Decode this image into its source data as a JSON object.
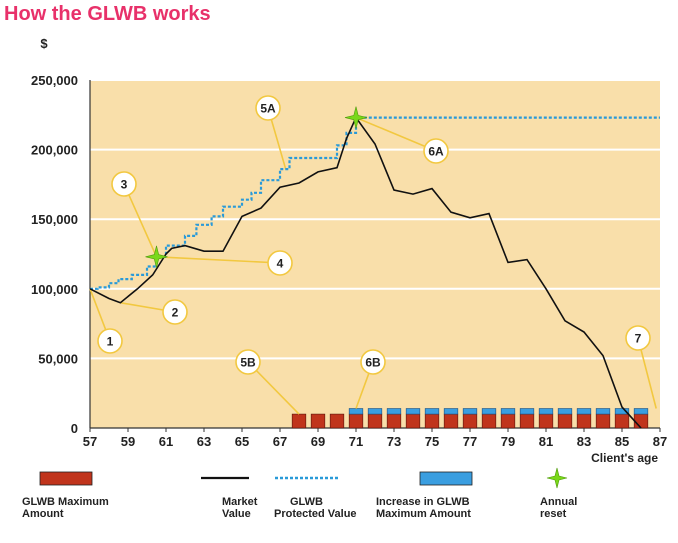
{
  "title": "How the GLWB works",
  "colors": {
    "background": "#f9dfaa",
    "gridline": "#ffffff",
    "title": "#e8316a",
    "max_amount": "#c0341c",
    "increase": "#3a9ee0",
    "market": "#111111",
    "protected": "#2a9ad8",
    "reset": "#7ad81a",
    "callout_line": "#f2c840"
  },
  "chart_data": {
    "type": "line",
    "title": "How the GLWB works",
    "ylabel": "$",
    "xlabel": "Client's age",
    "xlim": [
      57,
      87
    ],
    "ylim": [
      0,
      250000
    ],
    "x_ticks": [
      "57",
      "59",
      "61",
      "63",
      "65",
      "67",
      "69",
      "71",
      "73",
      "75",
      "77",
      "79",
      "81",
      "83",
      "85",
      "87"
    ],
    "y_ticks": [
      "0",
      "50,000",
      "100,000",
      "150,000",
      "200,000",
      "250,000"
    ],
    "grid": true,
    "series": [
      {
        "name": "Market Value",
        "points": [
          [
            57,
            100000
          ],
          [
            58,
            93000
          ],
          [
            58.6,
            90000
          ],
          [
            59.5,
            100000
          ],
          [
            60.3,
            110000
          ],
          [
            61,
            125000
          ],
          [
            61.3,
            129000
          ],
          [
            62,
            131000
          ],
          [
            63,
            127000
          ],
          [
            64,
            127000
          ],
          [
            65,
            152000
          ],
          [
            66,
            158000
          ],
          [
            67,
            173000
          ],
          [
            68,
            176000
          ],
          [
            69,
            184000
          ],
          [
            70,
            187000
          ],
          [
            70.5,
            208000
          ],
          [
            71,
            223000
          ],
          [
            72,
            204000
          ],
          [
            73,
            171000
          ],
          [
            74,
            168000
          ],
          [
            75,
            172000
          ],
          [
            76,
            155000
          ],
          [
            77,
            151000
          ],
          [
            78,
            154000
          ],
          [
            79,
            119000
          ],
          [
            80,
            121000
          ],
          [
            81,
            100000
          ],
          [
            82,
            77000
          ],
          [
            83,
            69000
          ],
          [
            84,
            52000
          ],
          [
            85,
            15000
          ],
          [
            86,
            0
          ]
        ]
      },
      {
        "name": "GLWB Protected Value",
        "points": [
          [
            57,
            100000
          ],
          [
            57.4,
            100000
          ],
          [
            57.4,
            101000
          ],
          [
            58,
            101000
          ],
          [
            58,
            104000
          ],
          [
            58.5,
            104000
          ],
          [
            58.5,
            107000
          ],
          [
            59.2,
            107000
          ],
          [
            59.2,
            110000
          ],
          [
            60,
            110000
          ],
          [
            60,
            116000
          ],
          [
            60.5,
            116000
          ],
          [
            60.5,
            123000
          ],
          [
            61,
            123000
          ],
          [
            61,
            131000
          ],
          [
            62,
            131000
          ],
          [
            62,
            138000
          ],
          [
            62.6,
            138000
          ],
          [
            62.6,
            146000
          ],
          [
            63.4,
            146000
          ],
          [
            63.4,
            152000
          ],
          [
            64,
            152000
          ],
          [
            64,
            159000
          ],
          [
            65,
            159000
          ],
          [
            65,
            164000
          ],
          [
            65.5,
            164000
          ],
          [
            65.5,
            169000
          ],
          [
            66,
            169000
          ],
          [
            66,
            178000
          ],
          [
            67,
            178000
          ],
          [
            67,
            186000
          ],
          [
            67.5,
            186000
          ],
          [
            67.5,
            194000
          ],
          [
            70,
            194000
          ],
          [
            70,
            203000
          ],
          [
            70.5,
            203000
          ],
          [
            70.5,
            212000
          ],
          [
            71,
            212000
          ],
          [
            71,
            223000
          ],
          [
            87,
            223000
          ]
        ]
      }
    ],
    "bars": {
      "name": "GLWB Maximum Amount",
      "x": [
        68,
        69,
        70,
        71,
        72,
        73,
        74,
        75,
        76,
        77,
        78,
        79,
        80,
        81,
        82,
        83,
        84,
        85,
        86
      ],
      "values": [
        10000,
        10000,
        10000,
        10000,
        10000,
        10000,
        10000,
        10000,
        10000,
        10000,
        10000,
        10000,
        10000,
        10000,
        10000,
        10000,
        10000,
        10000,
        10000
      ]
    },
    "increase": {
      "name": "Increase in GLWB Maximum Amount",
      "x": [
        71,
        72,
        73,
        74,
        75,
        76,
        77,
        78,
        79,
        80,
        81,
        82,
        83,
        84,
        85,
        86
      ],
      "values": [
        4000,
        4000,
        4000,
        4000,
        4000,
        4000,
        4000,
        4000,
        4000,
        4000,
        4000,
        4000,
        4000,
        4000,
        4000,
        4000
      ]
    },
    "resets": [
      {
        "name": "Annual reset",
        "x": 60.5,
        "y": 123000
      },
      {
        "name": "Annual reset",
        "x": 71,
        "y": 223000
      }
    ],
    "annotations": [
      {
        "label": "1",
        "x": 57,
        "y": 100000
      },
      {
        "label": "2",
        "x": 58.6,
        "y": 90000
      },
      {
        "label": "3",
        "x": 60.5,
        "y": 123000
      },
      {
        "label": "4",
        "x": 60.5,
        "y": 123000
      },
      {
        "label": "5A",
        "x": 67.3,
        "y": 186000
      },
      {
        "label": "6A",
        "x": 71,
        "y": 223000
      },
      {
        "label": "5B",
        "x": 68,
        "y": 10000
      },
      {
        "label": "6B",
        "x": 71,
        "y": 14000
      },
      {
        "label": "7",
        "x": 86.8,
        "y": 14000
      }
    ],
    "legend": [
      {
        "label": "GLWB Maximum Amount",
        "kind": "bar",
        "color": "#c0341c"
      },
      {
        "label": "Market Value",
        "kind": "line",
        "color": "#111111"
      },
      {
        "label": "GLWB Protected Value",
        "kind": "dotted",
        "color": "#2a9ad8"
      },
      {
        "label": "Increase in GLWB Maximum Amount",
        "kind": "bar",
        "color": "#3a9ee0"
      },
      {
        "label": "Annual reset",
        "kind": "star",
        "color": "#7ad81a"
      }
    ],
    "legend_position": "bottom"
  }
}
